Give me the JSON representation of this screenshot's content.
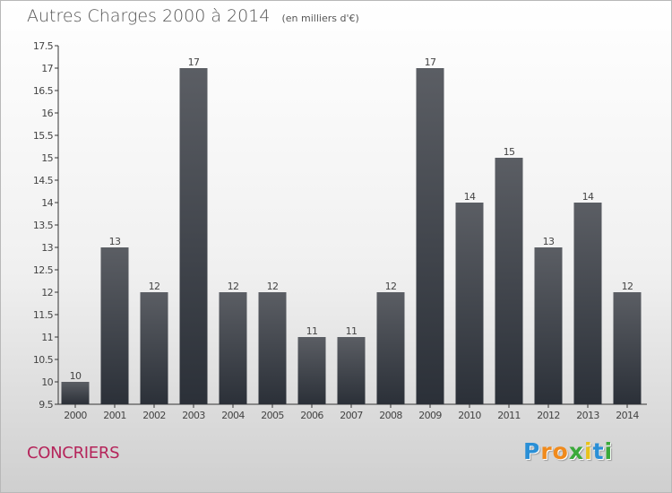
{
  "colors": {
    "bar_top": "#5b5e64",
    "bar_bottom": "#2b3038",
    "title": "#555555",
    "commune": "#b5245a",
    "axis": "#333333"
  },
  "commune": "CONCRIERS",
  "logo": {
    "letters": [
      {
        "ch": "P",
        "color": "#2a8fd6"
      },
      {
        "ch": "r",
        "color": "#f08a1c"
      },
      {
        "ch": "o",
        "color": "#f08a1c"
      },
      {
        "ch": "x",
        "color": "#3aa93a"
      },
      {
        "ch": "i",
        "color": "#e9c21a"
      },
      {
        "ch": "t",
        "color": "#2a8fd6"
      },
      {
        "ch": "i",
        "color": "#3aa93a"
      }
    ]
  },
  "chart_data": {
    "type": "bar",
    "title": "Autres Charges 2000 à 2014",
    "subtitle": "(en milliers d'€)",
    "categories": [
      "2000",
      "2001",
      "2002",
      "2003",
      "2004",
      "2005",
      "2006",
      "2007",
      "2008",
      "2009",
      "2010",
      "2011",
      "2012",
      "2013",
      "2014"
    ],
    "values": [
      10,
      13,
      12,
      17,
      12,
      12,
      11,
      11,
      12,
      17,
      14,
      15,
      13,
      14,
      12
    ],
    "ylim": [
      9.5,
      17.5
    ],
    "yticks": [
      "9.5",
      "10",
      "10.5",
      "11",
      "11.5",
      "12",
      "12.5",
      "13",
      "13.5",
      "14",
      "14.5",
      "15",
      "15.5",
      "16",
      "16.5",
      "17",
      "17.5"
    ],
    "grid": false,
    "legend": "none"
  }
}
